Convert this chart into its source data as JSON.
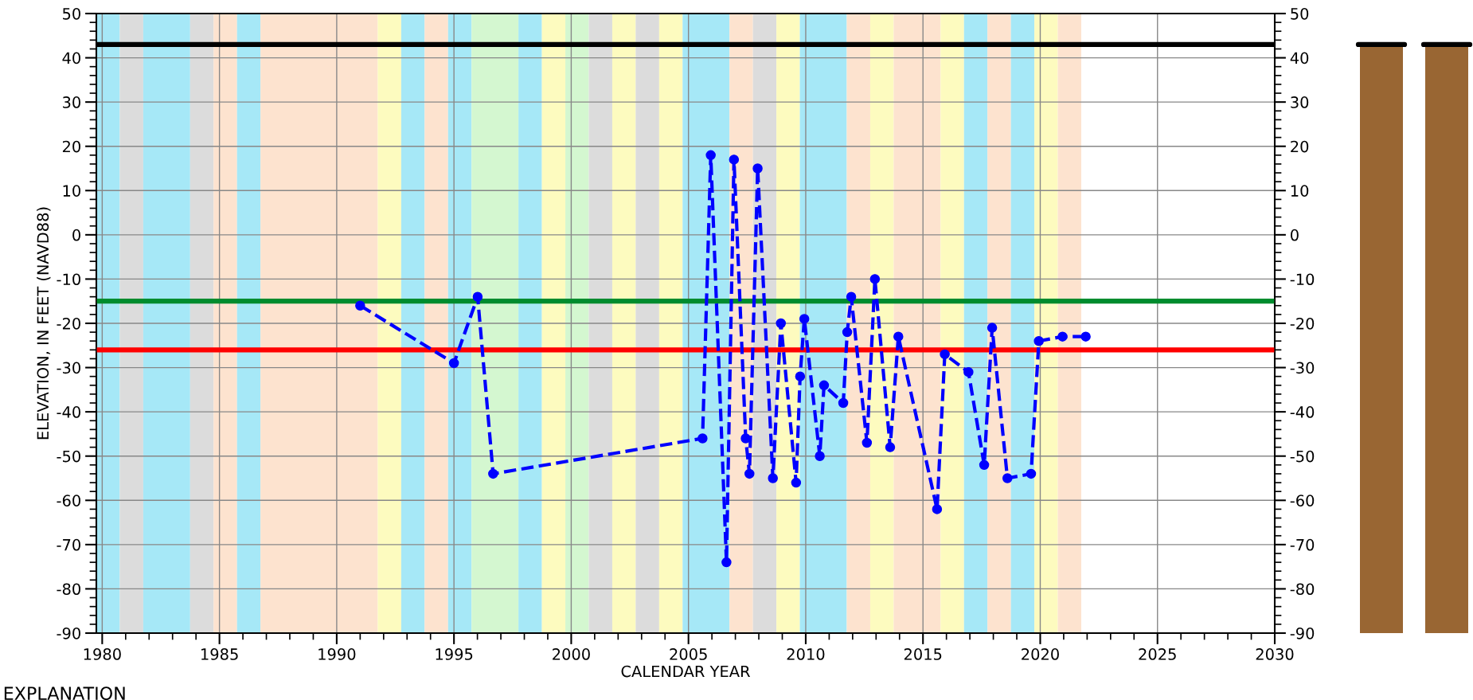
{
  "chart_data": {
    "type": "line",
    "xlabel": "CALENDAR YEAR",
    "ylabel": "ELEVATION, IN FEET (NAVD88)",
    "annotations": [
      "EXPLANATION"
    ],
    "series": [
      {
        "color": "#0000ff",
        "marker": "circle",
        "line_style": "dashed",
        "x": [
          1991.0,
          1995.0,
          1996.01,
          1996.67,
          2005.6,
          2005.95,
          2006.62,
          2006.94,
          2007.44,
          2007.6,
          2007.95,
          2008.6,
          2008.94,
          2009.59,
          2009.76,
          2009.94,
          2010.6,
          2010.78,
          2011.6,
          2011.77,
          2011.94,
          2012.61,
          2012.95,
          2013.6,
          2013.95,
          2015.6,
          2015.93,
          2016.94,
          2017.61,
          2017.95,
          2018.6,
          2019.61,
          2019.94,
          2020.95,
          2021.94
        ],
        "values": [
          -16,
          -29,
          -14,
          -54,
          -46,
          18,
          -74,
          17,
          -46,
          -54,
          15,
          -55,
          -20,
          -56,
          -32,
          -19,
          -50,
          -34,
          -38,
          -22,
          -14,
          -47,
          -10,
          -48,
          -23,
          -62,
          -27,
          -31,
          -52,
          -21,
          -55,
          -54,
          -24,
          -23,
          -23
        ]
      }
    ],
    "xlim": [
      1979.75,
      2030
    ],
    "xticks": [
      1980,
      1985,
      1990,
      1995,
      2000,
      2005,
      2010,
      2015,
      2020,
      2025,
      2030
    ],
    "ylim": [
      -90,
      50
    ],
    "yticks": [
      -90,
      -80,
      -70,
      -60,
      -50,
      -40,
      -30,
      -20,
      -10,
      0,
      10,
      20,
      30,
      40,
      50
    ],
    "y2lim": [
      -90,
      50
    ],
    "y2ticks": [
      -90,
      -80,
      -70,
      -60,
      -50,
      -40,
      -30,
      -20,
      -10,
      0,
      10,
      20,
      30,
      40,
      50
    ],
    "grid": true,
    "legend": false,
    "ref_lines": [
      {
        "axis": "y",
        "value": 43,
        "color": "#000000"
      },
      {
        "axis": "y",
        "value": -15,
        "color": "#008c2e"
      },
      {
        "axis": "y",
        "value": -26,
        "color": "#ff0000"
      }
    ],
    "bands": [
      {
        "axis": "x",
        "from": 1979.75,
        "to": 1980.75,
        "color": "#a6e8f7"
      },
      {
        "axis": "x",
        "from": 1980.75,
        "to": 1981.75,
        "color": "#dcdcdc"
      },
      {
        "axis": "x",
        "from": 1981.75,
        "to": 1983.75,
        "color": "#a6e8f7"
      },
      {
        "axis": "x",
        "from": 1983.75,
        "to": 1984.75,
        "color": "#dcdcdc"
      },
      {
        "axis": "x",
        "from": 1984.75,
        "to": 1985.75,
        "color": "#fde3cf"
      },
      {
        "axis": "x",
        "from": 1985.75,
        "to": 1986.75,
        "color": "#a6e8f7"
      },
      {
        "axis": "x",
        "from": 1986.75,
        "to": 1991.75,
        "color": "#fde3cf"
      },
      {
        "axis": "x",
        "from": 1991.75,
        "to": 1992.75,
        "color": "#fdfbbf"
      },
      {
        "axis": "x",
        "from": 1992.75,
        "to": 1993.75,
        "color": "#a6e8f7"
      },
      {
        "axis": "x",
        "from": 1993.75,
        "to": 1994.75,
        "color": "#fde3cf"
      },
      {
        "axis": "x",
        "from": 1994.75,
        "to": 1995.75,
        "color": "#a6e8f7"
      },
      {
        "axis": "x",
        "from": 1995.75,
        "to": 1997.75,
        "color": "#d4f7d0"
      },
      {
        "axis": "x",
        "from": 1997.75,
        "to": 1998.75,
        "color": "#a6e8f7"
      },
      {
        "axis": "x",
        "from": 1998.75,
        "to": 1999.75,
        "color": "#fdfbbf"
      },
      {
        "axis": "x",
        "from": 1999.75,
        "to": 2000.75,
        "color": "#d4f7d0"
      },
      {
        "axis": "x",
        "from": 2000.75,
        "to": 2001.75,
        "color": "#dcdcdc"
      },
      {
        "axis": "x",
        "from": 2001.75,
        "to": 2002.75,
        "color": "#fdfbbf"
      },
      {
        "axis": "x",
        "from": 2002.75,
        "to": 2003.75,
        "color": "#dcdcdc"
      },
      {
        "axis": "x",
        "from": 2003.75,
        "to": 2004.75,
        "color": "#fdfbbf"
      },
      {
        "axis": "x",
        "from": 2004.75,
        "to": 2006.75,
        "color": "#a6e8f7"
      },
      {
        "axis": "x",
        "from": 2006.75,
        "to": 2007.75,
        "color": "#fde3cf"
      },
      {
        "axis": "x",
        "from": 2007.75,
        "to": 2008.75,
        "color": "#dcdcdc"
      },
      {
        "axis": "x",
        "from": 2008.75,
        "to": 2009.75,
        "color": "#fdfbbf"
      },
      {
        "axis": "x",
        "from": 2009.75,
        "to": 2011.75,
        "color": "#a6e8f7"
      },
      {
        "axis": "x",
        "from": 2011.75,
        "to": 2012.75,
        "color": "#fde3cf"
      },
      {
        "axis": "x",
        "from": 2012.75,
        "to": 2013.75,
        "color": "#fdfbbf"
      },
      {
        "axis": "x",
        "from": 2013.75,
        "to": 2015.75,
        "color": "#fde3cf"
      },
      {
        "axis": "x",
        "from": 2015.75,
        "to": 2016.75,
        "color": "#fdfbbf"
      },
      {
        "axis": "x",
        "from": 2016.75,
        "to": 2017.75,
        "color": "#a6e8f7"
      },
      {
        "axis": "x",
        "from": 2017.75,
        "to": 2018.75,
        "color": "#fde3cf"
      },
      {
        "axis": "x",
        "from": 2018.75,
        "to": 2019.75,
        "color": "#a6e8f7"
      },
      {
        "axis": "x",
        "from": 2019.75,
        "to": 2020.75,
        "color": "#fdfbbf"
      },
      {
        "axis": "x",
        "from": 2020.75,
        "to": 2021.75,
        "color": "#fde3cf"
      }
    ]
  }
}
